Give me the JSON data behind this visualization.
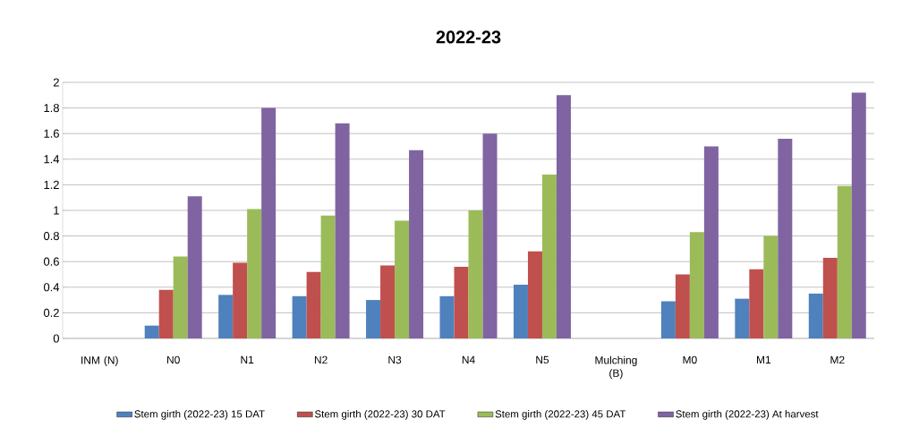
{
  "chart_data": {
    "type": "bar",
    "title": "2022-23",
    "categories": [
      "INM (N)",
      "N0",
      "N1",
      "N2",
      "N3",
      "N4",
      "N5",
      "Mulching (B)",
      "M0",
      "M1",
      "M2"
    ],
    "series": [
      {
        "name": "Stem girth (2022-23) 15 DAT",
        "color": "#4f81bd",
        "values": [
          null,
          0.1,
          0.34,
          0.33,
          0.3,
          0.33,
          0.42,
          null,
          0.29,
          0.31,
          0.35
        ]
      },
      {
        "name": "Stem girth (2022-23) 30 DAT",
        "color": "#c0504d",
        "values": [
          null,
          0.38,
          0.59,
          0.52,
          0.57,
          0.56,
          0.68,
          null,
          0.5,
          0.54,
          0.63
        ]
      },
      {
        "name": "Stem girth (2022-23) 45 DAT",
        "color": "#9bbb59",
        "values": [
          null,
          0.64,
          1.01,
          0.96,
          0.92,
          1.0,
          1.28,
          null,
          0.83,
          0.8,
          1.19
        ]
      },
      {
        "name": "Stem girth (2022-23) At harvest",
        "color": "#8064a2",
        "values": [
          null,
          1.11,
          1.8,
          1.68,
          1.47,
          1.6,
          1.9,
          null,
          1.5,
          1.56,
          1.92
        ]
      }
    ],
    "ylim": [
      0,
      2
    ],
    "yticks": [
      0,
      0.2,
      0.4,
      0.6,
      0.8,
      1,
      1.2,
      1.4,
      1.6,
      1.8,
      2
    ],
    "grid": "y",
    "legend": "bottom"
  }
}
